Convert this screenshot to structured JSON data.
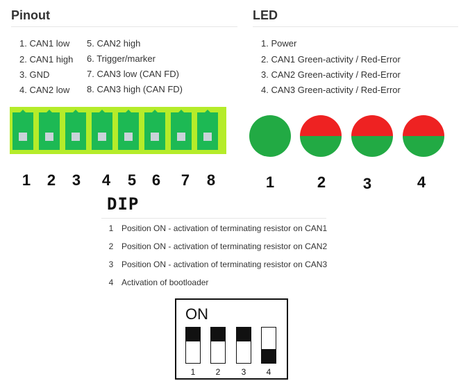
{
  "pinout": {
    "title": "Pinout",
    "items": [
      "1. CAN1 low",
      "2. CAN1 high",
      "3. GND",
      "4. CAN2 low",
      "5. CAN2 high",
      "6. Trigger/marker",
      "7. CAN3 low (CAN FD)",
      "8. CAN3 high (CAN FD)"
    ],
    "pin_numbers": [
      "1",
      "2",
      "3",
      "4",
      "5",
      "6",
      "7",
      "8"
    ],
    "connector_color": "#1db954",
    "connector_outer_color": "#b5ec2a"
  },
  "led": {
    "title": "LED",
    "items": [
      "1. Power",
      "2. CAN1 Green-activity / Red-Error",
      "3. CAN2 Green-activity / Red-Error",
      "4. CAN3 Green-activity / Red-Error"
    ],
    "numbers": [
      "1",
      "2",
      "3",
      "4"
    ],
    "lights": [
      {
        "top": "#22aa44",
        "bottom": "#22aa44"
      },
      {
        "top": "#ee2222",
        "bottom": "#22aa44"
      },
      {
        "top": "#ee2222",
        "bottom": "#22aa44"
      },
      {
        "top": "#ee2222",
        "bottom": "#22aa44"
      }
    ]
  },
  "dip": {
    "title": "DIP",
    "items": [
      {
        "num": "1",
        "text": "Position ON - activation of terminating resistor on CAN1"
      },
      {
        "num": "2",
        "text": "Position ON - activation of terminating resistor on CAN2"
      },
      {
        "num": "3",
        "text": "Position ON - activation of terminating resistor on CAN3"
      },
      {
        "num": "4",
        "text": "Activation of bootloader"
      }
    ],
    "switch_panel": {
      "on_label": "ON",
      "switches": [
        {
          "label": "1",
          "state": "on"
        },
        {
          "label": "2",
          "state": "on"
        },
        {
          "label": "3",
          "state": "on"
        },
        {
          "label": "4",
          "state": "off"
        }
      ]
    }
  }
}
